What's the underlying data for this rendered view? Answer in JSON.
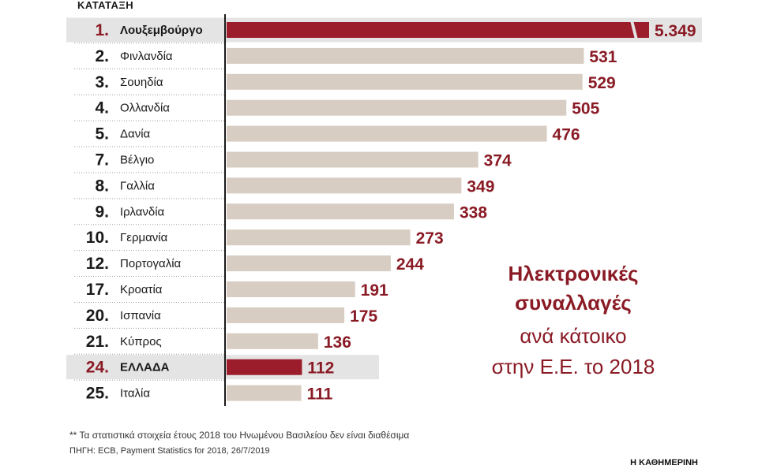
{
  "colors": {
    "bar_default": "#d8cdc3",
    "bar_highlight": "#9b1c2a",
    "label_accent": "#8a1b25",
    "row_highlight_bg": "#e4e4e4",
    "text_dark": "#1a1a1a"
  },
  "header": {
    "rank_label": "ΚΑΤΑΤΑΞΗ"
  },
  "title": {
    "line1": "Ηλεκτρονικές",
    "line2": "συναλλαγές",
    "line3": "ανά κάτοικο",
    "line4": "στην Ε.Ε. το 2018"
  },
  "chart_data": {
    "type": "bar",
    "orientation": "horizontal",
    "highlight_indices": [
      0,
      13
    ],
    "rows": [
      {
        "rank": "1.",
        "country": "Λουξεμβούργο",
        "value": 5349,
        "label": "5.349",
        "broken_axis": true
      },
      {
        "rank": "2.",
        "country": "Φινλανδία",
        "value": 531,
        "label": "531"
      },
      {
        "rank": "3.",
        "country": "Σουηδία",
        "value": 529,
        "label": "529"
      },
      {
        "rank": "4.",
        "country": "Ολλανδία",
        "value": 505,
        "label": "505"
      },
      {
        "rank": "5.",
        "country": "Δανία",
        "value": 476,
        "label": "476"
      },
      {
        "rank": "7.",
        "country": "Βέλγιο",
        "value": 374,
        "label": "374"
      },
      {
        "rank": "8.",
        "country": "Γαλλία",
        "value": 349,
        "label": "349"
      },
      {
        "rank": "9.",
        "country": "Ιρλανδία",
        "value": 338,
        "label": "338"
      },
      {
        "rank": "10.",
        "country": "Γερμανία",
        "value": 273,
        "label": "273"
      },
      {
        "rank": "12.",
        "country": "Πορτογαλία",
        "value": 244,
        "label": "244"
      },
      {
        "rank": "17.",
        "country": "Κροατία",
        "value": 191,
        "label": "191"
      },
      {
        "rank": "20.",
        "country": "Ισπανία",
        "value": 175,
        "label": "175"
      },
      {
        "rank": "21.",
        "country": "Κύπρος",
        "value": 136,
        "label": "136"
      },
      {
        "rank": "24.",
        "country": "ΕΛΛΑΔΑ",
        "value": 112,
        "label": "112"
      },
      {
        "rank": "25.",
        "country": "Ιταλία",
        "value": 111,
        "label": "111"
      }
    ]
  },
  "footer": {
    "note": "** Τα στατιστικά στοιχεία έτους 2018 του Ηνωμένου Βασιλείου δεν είναι διαθέσιμα",
    "source": "ΠΗΓΗ: ECB, Payment Statistics for 2018, 26/7/2019",
    "brand": "Η ΚΑΘΗΜΕΡΙΝΗ"
  }
}
